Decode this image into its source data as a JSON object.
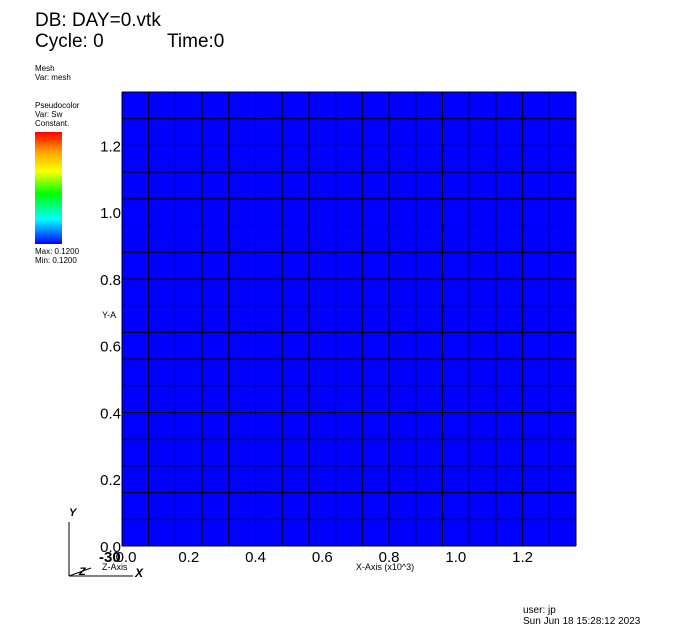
{
  "header": {
    "db": "DB: DAY=0.vtk",
    "cycle": "Cycle: 0",
    "time": "Time:0"
  },
  "mesh_legend": {
    "name": "Mesh",
    "var": "Var: mesh"
  },
  "pseudocolor_legend": {
    "name": "Pseudocolor",
    "var": "Var: Sw",
    "mode": "Constant.",
    "max": "Max:  0.1200",
    "min": "Min:  0.1200"
  },
  "footer": {
    "user": "user: jp",
    "date": "Sun Jun 18 15:28:12 2023"
  },
  "colors": {
    "fill": "#0000ff",
    "mesh_line": "#000000"
  },
  "triad": {
    "y": "Y",
    "z": "Z",
    "x": "X"
  },
  "chart_data": {
    "type": "heatmap",
    "xlabel": "X-Axis (x10^3)",
    "ylabel": "Y-A",
    "zlabel": "Z-Axis",
    "z_tick": "-30",
    "xlim": [
      0,
      1.36
    ],
    "ylim": [
      0,
      1.36
    ],
    "x_ticks": [
      0,
      0.2,
      0.4,
      0.6,
      0.8,
      1.0,
      1.2
    ],
    "y_ticks": [
      0,
      0.2,
      0.4,
      0.6,
      0.8,
      1.0,
      1.2
    ],
    "x_tick_labels": [
      "0.0",
      "0.2",
      "0.4",
      "0.6",
      "0.8",
      "1.0",
      "1.2"
    ],
    "y_tick_labels": [
      "0.0",
      "0.2",
      "0.4",
      "0.6",
      "0.8",
      "1.0",
      "1.2"
    ],
    "grid_cells_x": 17,
    "grid_cells_y": 17,
    "value": 0.12
  }
}
